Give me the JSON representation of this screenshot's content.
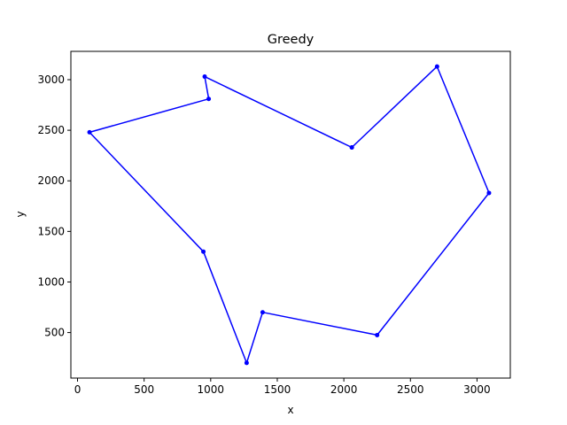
{
  "chart_data": {
    "type": "line",
    "title": "Greedy",
    "xlabel": "x",
    "ylabel": "y",
    "xlim": [
      -50,
      3250
    ],
    "ylim": [
      50,
      3280
    ],
    "xticks": [
      0,
      500,
      1000,
      1500,
      2000,
      2500,
      3000
    ],
    "yticks": [
      500,
      1000,
      1500,
      2000,
      2500,
      3000
    ],
    "grid": false,
    "series": [
      {
        "color": "#0000ff",
        "marker": "circle",
        "points": [
          {
            "x": 2060,
            "y": 2330
          },
          {
            "x": 955,
            "y": 3030
          },
          {
            "x": 985,
            "y": 2810
          },
          {
            "x": 90,
            "y": 2480
          },
          {
            "x": 945,
            "y": 1300
          },
          {
            "x": 1270,
            "y": 200
          },
          {
            "x": 1390,
            "y": 700
          },
          {
            "x": 2250,
            "y": 475
          },
          {
            "x": 3090,
            "y": 1880
          },
          {
            "x": 2700,
            "y": 3130
          },
          {
            "x": 2060,
            "y": 2330
          }
        ]
      }
    ]
  }
}
